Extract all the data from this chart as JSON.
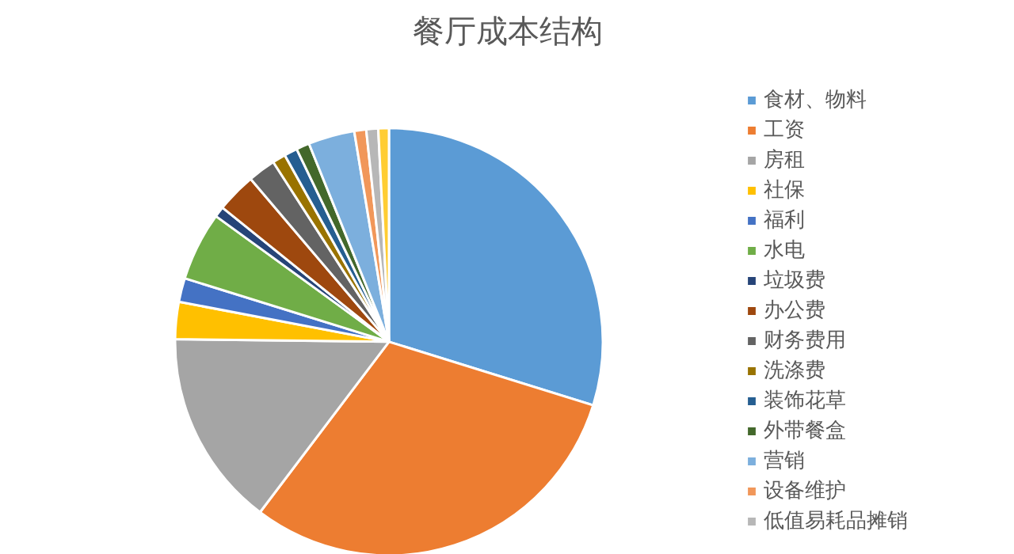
{
  "chart_data": {
    "type": "pie",
    "title": "餐厅成本结构",
    "categories": [
      "食材、物料",
      "工资",
      "房租",
      "社保",
      "福利",
      "水电",
      "垃圾费",
      "办公费",
      "财务费用",
      "洗涤费",
      "装饰花草",
      "外带餐盒",
      "营销",
      "设备维护",
      "低值易耗品摊销",
      null
    ],
    "values": [
      29.8,
      30.5,
      14.9,
      2.8,
      1.8,
      5.2,
      0.8,
      3.0,
      2.1,
      1.0,
      1.0,
      1.0,
      3.5,
      0.9,
      0.9,
      0.8
    ],
    "colors": [
      "#5b9bd5",
      "#ed7d31",
      "#a5a5a5",
      "#ffc000",
      "#4472c4",
      "#70ad47",
      "#264478",
      "#9e480e",
      "#636363",
      "#997300",
      "#255e91",
      "#43682b",
      "#7cafdd",
      "#f1975a",
      "#b7b7b7",
      "#ffcd33"
    ],
    "legend": "right"
  }
}
